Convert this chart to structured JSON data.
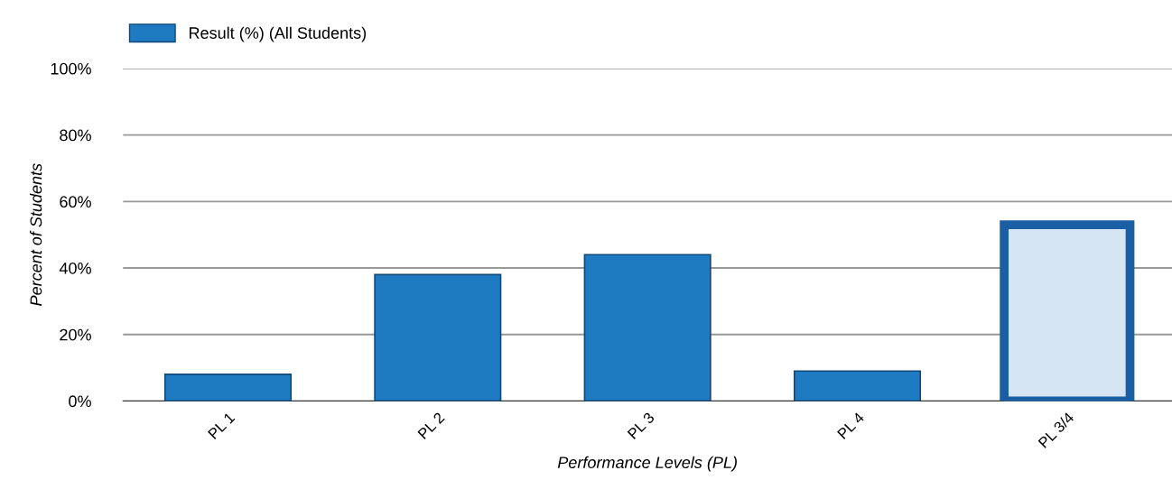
{
  "chart_data": {
    "type": "bar",
    "categories": [
      "PL 1",
      "PL 2",
      "PL 3",
      "PL 4",
      "PL 3/4"
    ],
    "series": [
      {
        "name": "Result (%) (All Students)",
        "color": "#1f7bc1",
        "colors": [
          "#1f7bc1",
          "#1f7bc1",
          "#1f7bc1",
          "#1f7bc1",
          "#d5e5f3"
        ],
        "values": [
          8,
          38,
          44,
          9,
          53
        ]
      }
    ],
    "xlabel": "Performance Levels (PL)",
    "ylabel": "Percent of Students",
    "ylim": [
      0,
      100
    ],
    "yticks": [
      {
        "value": 0,
        "label": "0%"
      },
      {
        "value": 20,
        "label": "20%"
      },
      {
        "value": 40,
        "label": "40%"
      },
      {
        "value": 60,
        "label": "60%"
      },
      {
        "value": 80,
        "label": "80%"
      },
      {
        "value": 100,
        "label": "100%"
      }
    ],
    "grid": "y",
    "legend": "top left"
  }
}
